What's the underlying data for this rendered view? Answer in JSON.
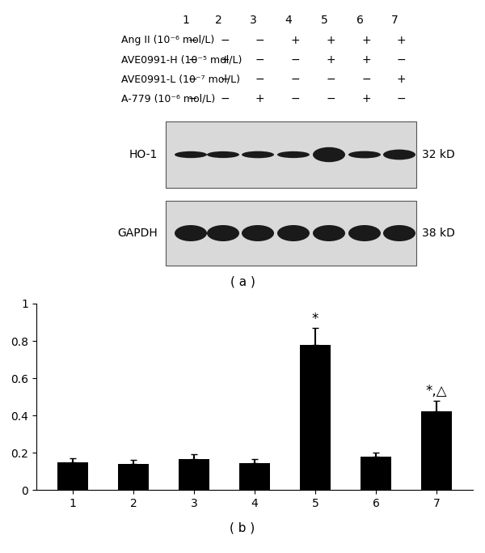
{
  "blot": {
    "lanes": [
      "1",
      "2",
      "3",
      "4",
      "5",
      "6",
      "7"
    ],
    "treatments": [
      {
        "label": "Ang II (10⁻⁶ mol/L)",
        "signs": [
          "−",
          "−",
          "−",
          "+",
          "+",
          "+",
          "+"
        ]
      },
      {
        "label": "AVE0991-H (10⁻⁵ mol/L)",
        "signs": [
          "−",
          "+",
          "−",
          "−",
          "+",
          "+",
          "−"
        ]
      },
      {
        "label": "AVE0991-L (10⁻⁷ mol/L)",
        "signs": [
          "−",
          "−",
          "−",
          "−",
          "−",
          "−",
          "+"
        ]
      },
      {
        "label": "A-779 (10⁻⁶ mol/L)",
        "signs": [
          "−",
          "−",
          "+",
          "−",
          "−",
          "+",
          "−"
        ]
      }
    ],
    "bands": [
      {
        "label": "HO-1",
        "size": "32 kD"
      },
      {
        "label": "GAPDH",
        "size": "38 kD"
      }
    ],
    "caption": "( a )"
  },
  "chart_data": {
    "type": "bar",
    "caption": "( b )",
    "categories": [
      "1",
      "2",
      "3",
      "4",
      "5",
      "6",
      "7"
    ],
    "values": [
      0.15,
      0.14,
      0.165,
      0.145,
      0.78,
      0.18,
      0.42
    ],
    "errors": [
      0.02,
      0.02,
      0.025,
      0.02,
      0.09,
      0.02,
      0.06
    ],
    "color": "#000000",
    "ylim": [
      0,
      1
    ],
    "yticks": [
      0,
      0.2,
      0.4,
      0.6,
      0.8,
      1
    ],
    "grid": false,
    "annotations": [
      {
        "category": "5",
        "text": "*"
      },
      {
        "category": "7",
        "text": "*,△"
      }
    ]
  }
}
